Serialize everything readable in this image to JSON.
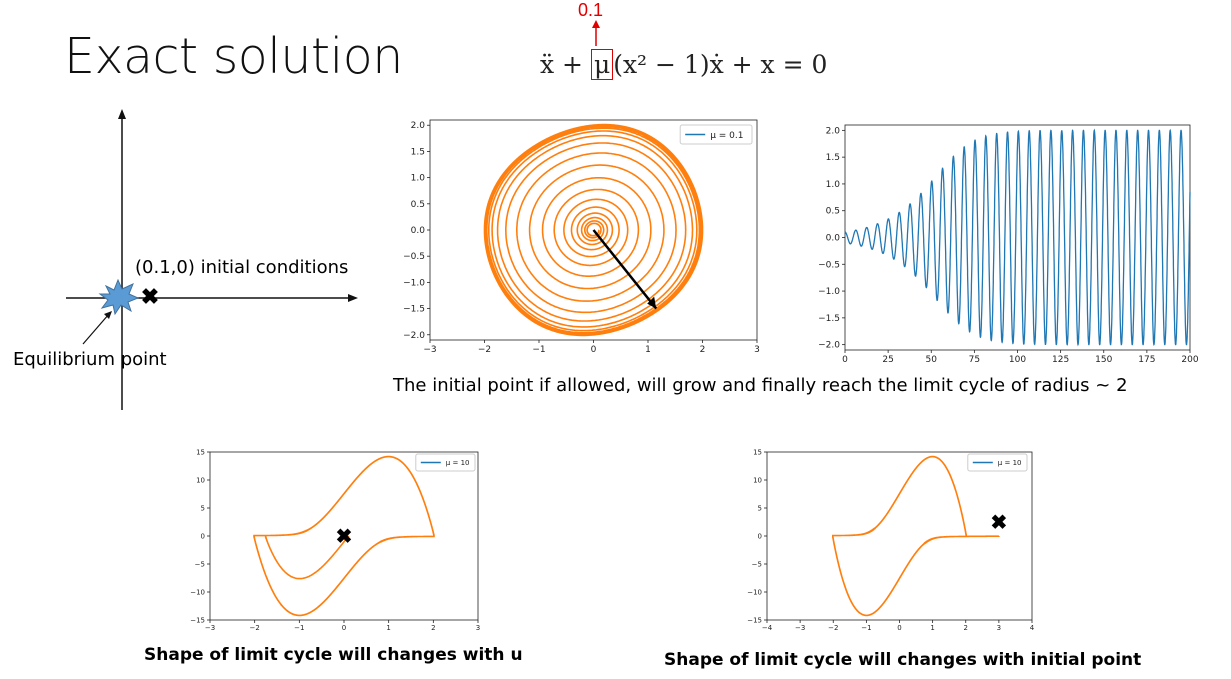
{
  "slide": {
    "title": "Exact solution",
    "equation": {
      "left": "ẍ + ",
      "mu": "μ",
      "right": "(x² − 1)ẋ + x = 0",
      "mu_value": "0.1"
    },
    "phase_sketch": {
      "initial_label": "(0.1,0) initial conditions",
      "equilibrium_label": "Equilibrium point"
    },
    "caption_top": "The initial point if allowed, will grow and finally reach the limit cycle of radius ~ 2",
    "caption_bottom_left": "Shape of limit cycle will changes with u",
    "caption_bottom_right": "Shape of limit cycle will changes with initial point"
  },
  "chart_data": [
    {
      "type": "line",
      "legend": "μ = 0.1",
      "legend_position": "top-right",
      "series_color": "#ff7f0e",
      "xlim": [
        -3,
        3
      ],
      "ylim": [
        -2.1,
        2.1
      ],
      "xticks": [
        "−3",
        "−2",
        "−1",
        "0",
        "1",
        "2",
        "3"
      ],
      "yticks": [
        "2.0",
        "1.5",
        "1.0",
        "0.5",
        "0.0",
        "−0.5",
        "−1.0",
        "−1.5",
        "−2.0"
      ],
      "description_values": {
        "initial_point": [
          0.1,
          0
        ],
        "limit_cycle_radius": 2
      },
      "annotation_arrow": {
        "from": [
          0,
          0
        ],
        "to": [
          1.15,
          -1.5
        ]
      }
    },
    {
      "type": "line",
      "series_color": "#1f77b4",
      "xlim": [
        0,
        200
      ],
      "ylim": [
        -2.1,
        2.1
      ],
      "xticks": [
        "0",
        "25",
        "50",
        "75",
        "100",
        "125",
        "150",
        "175",
        "200"
      ],
      "yticks": [
        "2.0",
        "1.5",
        "1.0",
        "0.5",
        "0.0",
        "−0.5",
        "−1.0",
        "−1.5",
        "−2.0"
      ],
      "amplitude_growth": {
        "start": 0.1,
        "saturates_at": 2.0,
        "period": 6.28
      }
    },
    {
      "type": "line",
      "legend": "μ = 10",
      "legend_position": "top-right",
      "series_color": "#ff7f0e",
      "xlim": [
        -3,
        3
      ],
      "ylim": [
        -15,
        15
      ],
      "xticks": [
        "−3",
        "−2",
        "−1",
        "0",
        "1",
        "2",
        "3"
      ],
      "yticks": [
        "15",
        "10",
        "5",
        "0",
        "−5",
        "−10",
        "−15"
      ],
      "marker": {
        "x": 0,
        "y": 0,
        "symbol": "✖"
      }
    },
    {
      "type": "line",
      "legend": "μ = 10",
      "legend_position": "top-right",
      "series_color": "#ff7f0e",
      "xlim": [
        -4,
        4
      ],
      "ylim": [
        -15,
        15
      ],
      "xticks": [
        "−4",
        "−3",
        "−2",
        "−1",
        "0",
        "1",
        "2",
        "3",
        "4"
      ],
      "yticks": [
        "15",
        "10",
        "5",
        "0",
        "−5",
        "−10",
        "−15"
      ],
      "marker": {
        "x": 3,
        "y": 2.5,
        "symbol": "✖"
      }
    }
  ]
}
